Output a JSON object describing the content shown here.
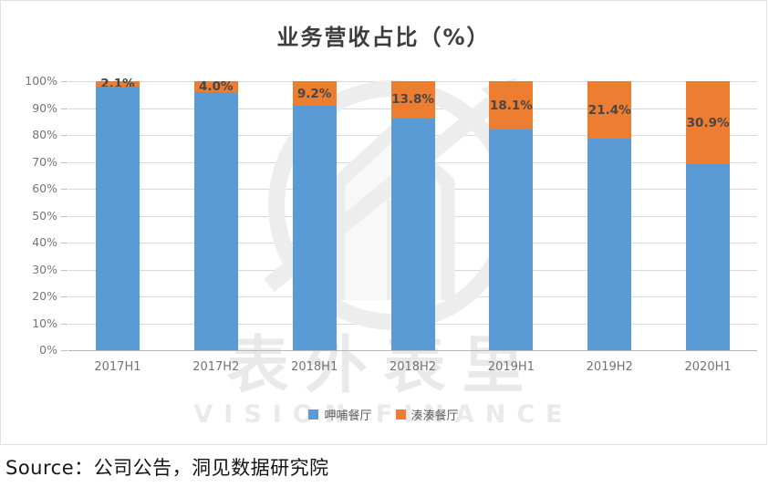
{
  "title": "业务营收占比（%）",
  "source": "Source：公司公告，洞见数据研究院",
  "watermark": {
    "cn": "表外表里",
    "en": "VISION FINANCE"
  },
  "colors": {
    "blue": "#5B9BD5",
    "orange": "#ED7D31",
    "gridline": "#D9D9D9",
    "axis_line": "#B7B7B7",
    "axis_text": "#747474",
    "label_text": "#474747",
    "watermark": "#ECECEC"
  },
  "legend": [
    {
      "label": "呷哺餐厅",
      "color": "#5B9BD5"
    },
    {
      "label": "湊湊餐厅",
      "color": "#ED7D31"
    }
  ],
  "chart_data": {
    "type": "bar",
    "stacked": true,
    "title": "业务营收占比（%）",
    "xlabel": "",
    "ylabel": "",
    "ylim": [
      0,
      100
    ],
    "grid": true,
    "legend_position": "bottom",
    "categories": [
      "2017H1",
      "2017H2",
      "2018H1",
      "2018H2",
      "2019H1",
      "2019H2",
      "2020H1"
    ],
    "yticks": [
      "0%",
      "10%",
      "20%",
      "30%",
      "40%",
      "50%",
      "60%",
      "70%",
      "80%",
      "90%",
      "100%"
    ],
    "series": [
      {
        "name": "呷哺餐厅",
        "color": "#5B9BD5",
        "values": [
          97.9,
          96.0,
          90.8,
          86.2,
          81.9,
          78.6,
          69.1
        ]
      },
      {
        "name": "湊湊餐厅",
        "color": "#ED7D31",
        "values": [
          2.1,
          4.0,
          9.2,
          13.8,
          18.1,
          21.4,
          30.9
        ],
        "data_labels": [
          "2.1%",
          "4.0%",
          "9.2%",
          "13.8%",
          "18.1%",
          "21.4%",
          "30.9%"
        ]
      }
    ]
  }
}
